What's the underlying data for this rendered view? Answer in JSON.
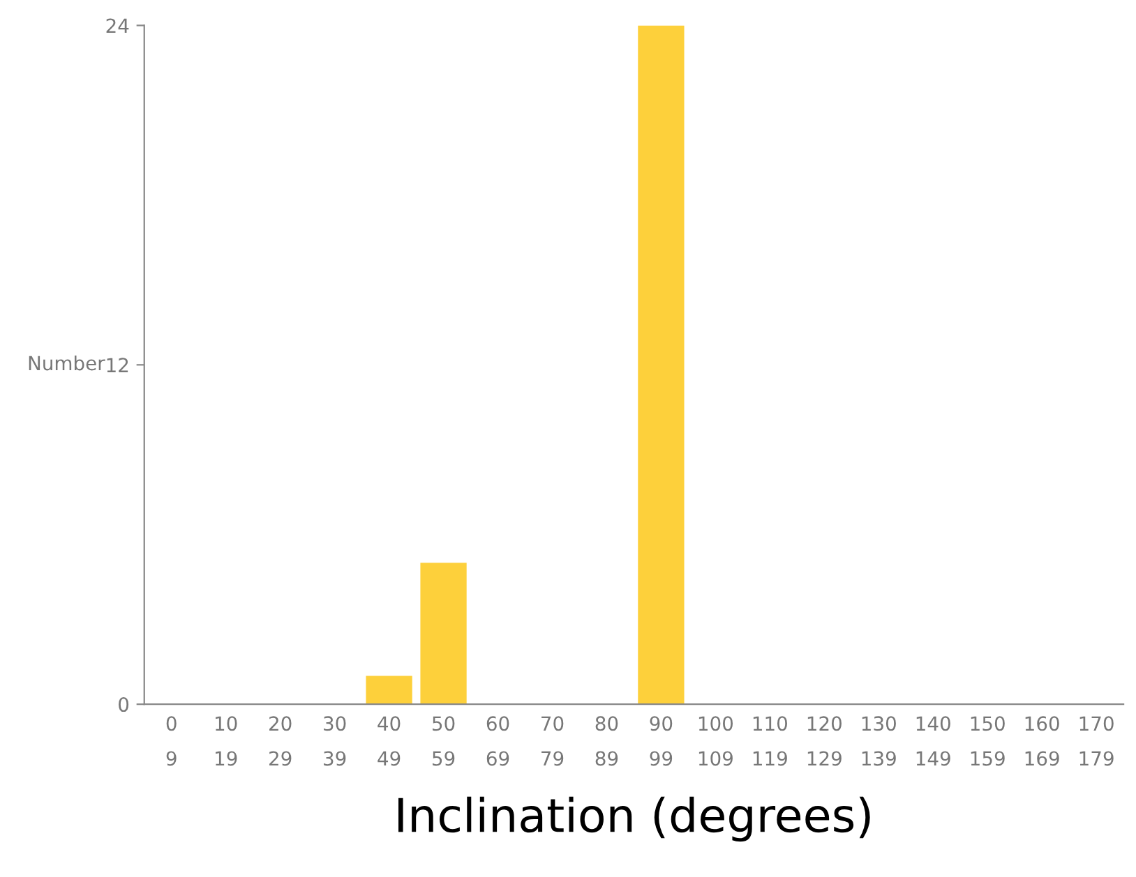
{
  "chart_data": {
    "type": "bar",
    "xlabel": "Inclination (degrees)",
    "ylabel": "Number",
    "categories": [
      "0\n9",
      "10\n19",
      "20\n29",
      "30\n39",
      "40\n49",
      "50\n59",
      "60\n69",
      "70\n79",
      "80\n89",
      "90\n99",
      "100\n109",
      "110\n119",
      "120\n129",
      "130\n139",
      "140\n149",
      "150\n159",
      "160\n169",
      "170\n179"
    ],
    "values": [
      0,
      0,
      0,
      0,
      1,
      5,
      0,
      0,
      0,
      24,
      0,
      0,
      0,
      0,
      0,
      0,
      0,
      0
    ],
    "color": "#fdd03b",
    "ylim": [
      0,
      24
    ],
    "yticks": [
      0,
      12,
      24
    ],
    "grid": false,
    "legend": false
  }
}
